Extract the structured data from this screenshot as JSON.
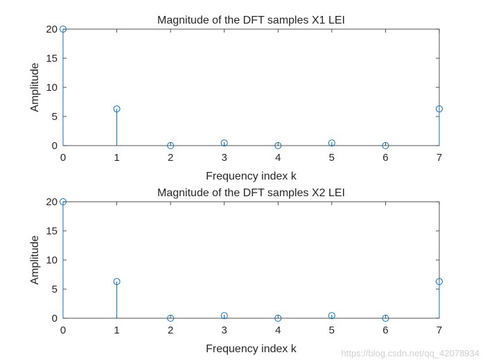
{
  "chart_data": [
    {
      "type": "stem",
      "title": "Magnitude of the DFT samples X1 LEI",
      "xlabel": "Frequency index k",
      "ylabel": "Amplitude",
      "xlim": [
        0,
        7
      ],
      "ylim": [
        0,
        20
      ],
      "xticks": [
        0,
        1,
        2,
        3,
        4,
        5,
        6,
        7
      ],
      "yticks": [
        0,
        5,
        10,
        15,
        20
      ],
      "x": [
        0,
        1,
        2,
        3,
        4,
        5,
        6,
        7
      ],
      "values": [
        20,
        6.3,
        0,
        0.45,
        0,
        0.45,
        0,
        6.3
      ],
      "color": "#0072BD",
      "grid": false
    },
    {
      "type": "stem",
      "title": "Magnitude of the DFT samples X2 LEI",
      "xlabel": "Frequency index k",
      "ylabel": "Amplitude",
      "xlim": [
        0,
        7
      ],
      "ylim": [
        0,
        20
      ],
      "xticks": [
        0,
        1,
        2,
        3,
        4,
        5,
        6,
        7
      ],
      "yticks": [
        0,
        5,
        10,
        15,
        20
      ],
      "x": [
        0,
        1,
        2,
        3,
        4,
        5,
        6,
        7
      ],
      "values": [
        20,
        6.3,
        0,
        0.45,
        0,
        0.45,
        0,
        6.3
      ],
      "color": "#0072BD",
      "grid": false
    }
  ],
  "watermark": "https://blog.csdn.net/qq_42078934"
}
